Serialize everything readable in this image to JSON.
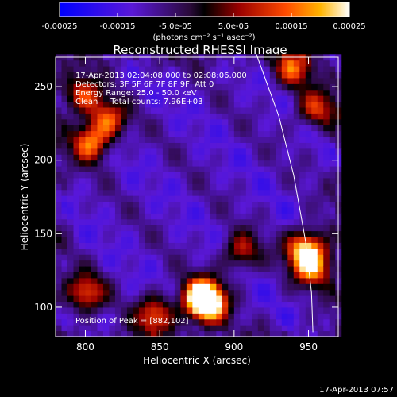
{
  "chart_data": {
    "type": "heatmap",
    "title": "Reconstructed RHESSI Image",
    "xlabel": "Heliocentric X (arcsec)",
    "ylabel": "Heliocentric Y (arcsec)",
    "xlim": [
      780,
      970
    ],
    "ylim": [
      80,
      270
    ],
    "x_ticks": [
      "800",
      "850",
      "900",
      "950"
    ],
    "x_tick_values": [
      800,
      850,
      900,
      950
    ],
    "y_ticks": [
      "100",
      "150",
      "200",
      "250"
    ],
    "y_tick_values": [
      100,
      150,
      200,
      250
    ],
    "colorbar": {
      "ticks": [
        "-0.00025",
        "-0.00015",
        "-5.0e-05",
        "5.0e-05",
        "0.00015",
        "0.00025"
      ],
      "tick_values": [
        -0.00025,
        -0.00015,
        -5e-05,
        5e-05,
        0.00015,
        0.00025
      ],
      "range": [
        -0.00025,
        0.00025
      ],
      "unit_label": "(photons cm⁻² s⁻¹ asec⁻²)"
    },
    "annotations": {
      "time_range": "17-Apr-2013 02:04:08.000 to 02:08:06.000",
      "detectors": "Detectors: 3F 5F 6F 7F 8F 9F, Att 0",
      "energy_range": "Energy Range: 25.0 - 50.0 keV",
      "method": "Clean     Total counts: 7.96E+03",
      "peak": "Position of Peak = [882,102]"
    },
    "bright_regions": [
      {
        "x": 882,
        "y": 102,
        "value": 0.00025
      },
      {
        "x": 878,
        "y": 108,
        "value": 0.0002
      },
      {
        "x": 948,
        "y": 140,
        "value": 0.00022
      },
      {
        "x": 953,
        "y": 127,
        "value": 0.00016
      },
      {
        "x": 803,
        "y": 212,
        "value": 0.00016
      },
      {
        "x": 815,
        "y": 228,
        "value": 0.00013
      },
      {
        "x": 798,
        "y": 245,
        "value": 0.00012
      },
      {
        "x": 847,
        "y": 95,
        "value": 0.00014
      },
      {
        "x": 800,
        "y": 110,
        "value": 0.00013
      },
      {
        "x": 940,
        "y": 262,
        "value": 0.00011
      },
      {
        "x": 955,
        "y": 235,
        "value": 0.0001
      },
      {
        "x": 905,
        "y": 138,
        "value": 8e-05
      }
    ],
    "limb_curve": [
      [
        915,
        272
      ],
      [
        930,
        230
      ],
      [
        940,
        190
      ],
      [
        948,
        145
      ],
      [
        952,
        110
      ],
      [
        953,
        83
      ]
    ],
    "footer": "17-Apr-2013 07:57"
  }
}
